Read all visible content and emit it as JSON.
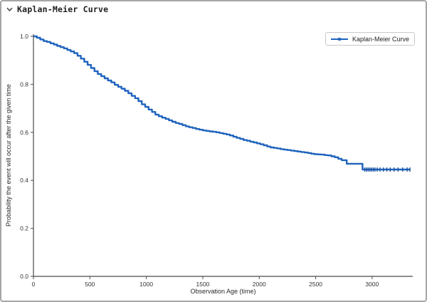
{
  "header": {
    "title": "Kaplan-Meier Curve"
  },
  "legend": {
    "label": "Kaplan-Meier Curve"
  },
  "colors": {
    "curve": "#1f63bd",
    "censor": "#1a4fa0",
    "axis": "#4a4a4a",
    "text": "#333333",
    "window_border": "#a6a6a6",
    "legend_border": "#c9c9c9"
  },
  "chart_data": {
    "type": "line",
    "subtype": "step-after survival curve",
    "title": "",
    "xlabel": "Observation Age (time)",
    "ylabel": "Probability the event will occur after the given time",
    "xlim": [
      0,
      3360
    ],
    "ylim": [
      0,
      1.0
    ],
    "xticks": [
      0,
      500,
      1000,
      1500,
      2000,
      2500,
      3000
    ],
    "yticks": [
      0.0,
      0.2,
      0.4,
      0.6,
      0.8,
      1.0
    ],
    "grid": false,
    "legend_position": "top-right",
    "series": [
      {
        "name": "Kaplan-Meier Curve",
        "color": "#1f63bd",
        "points": [
          [
            0,
            1.0
          ],
          [
            30,
            0.994
          ],
          [
            60,
            0.987
          ],
          [
            90,
            0.98
          ],
          [
            120,
            0.977
          ],
          [
            150,
            0.971
          ],
          [
            180,
            0.966
          ],
          [
            210,
            0.96
          ],
          [
            240,
            0.955
          ],
          [
            270,
            0.95
          ],
          [
            300,
            0.943
          ],
          [
            330,
            0.937
          ],
          [
            360,
            0.93
          ],
          [
            390,
            0.919
          ],
          [
            420,
            0.907
          ],
          [
            450,
            0.894
          ],
          [
            480,
            0.881
          ],
          [
            510,
            0.868
          ],
          [
            540,
            0.855
          ],
          [
            570,
            0.843
          ],
          [
            600,
            0.834
          ],
          [
            630,
            0.825
          ],
          [
            660,
            0.816
          ],
          [
            690,
            0.808
          ],
          [
            720,
            0.798
          ],
          [
            750,
            0.79
          ],
          [
            780,
            0.782
          ],
          [
            810,
            0.773
          ],
          [
            840,
            0.763
          ],
          [
            870,
            0.752
          ],
          [
            900,
            0.742
          ],
          [
            930,
            0.73
          ],
          [
            960,
            0.717
          ],
          [
            990,
            0.706
          ],
          [
            1020,
            0.695
          ],
          [
            1050,
            0.685
          ],
          [
            1080,
            0.674
          ],
          [
            1110,
            0.667
          ],
          [
            1140,
            0.661
          ],
          [
            1170,
            0.656
          ],
          [
            1200,
            0.65
          ],
          [
            1230,
            0.644
          ],
          [
            1260,
            0.639
          ],
          [
            1290,
            0.635
          ],
          [
            1320,
            0.63
          ],
          [
            1350,
            0.625
          ],
          [
            1380,
            0.621
          ],
          [
            1410,
            0.618
          ],
          [
            1440,
            0.614
          ],
          [
            1470,
            0.611
          ],
          [
            1500,
            0.608
          ],
          [
            1530,
            0.606
          ],
          [
            1560,
            0.604
          ],
          [
            1590,
            0.602
          ],
          [
            1620,
            0.6
          ],
          [
            1650,
            0.597
          ],
          [
            1680,
            0.594
          ],
          [
            1710,
            0.591
          ],
          [
            1740,
            0.587
          ],
          [
            1770,
            0.582
          ],
          [
            1800,
            0.577
          ],
          [
            1830,
            0.573
          ],
          [
            1860,
            0.568
          ],
          [
            1890,
            0.565
          ],
          [
            1920,
            0.561
          ],
          [
            1950,
            0.558
          ],
          [
            1980,
            0.554
          ],
          [
            2010,
            0.55
          ],
          [
            2040,
            0.546
          ],
          [
            2070,
            0.541
          ],
          [
            2100,
            0.537
          ],
          [
            2130,
            0.535
          ],
          [
            2160,
            0.533
          ],
          [
            2190,
            0.53
          ],
          [
            2220,
            0.528
          ],
          [
            2250,
            0.526
          ],
          [
            2280,
            0.524
          ],
          [
            2310,
            0.522
          ],
          [
            2340,
            0.52
          ],
          [
            2370,
            0.518
          ],
          [
            2400,
            0.516
          ],
          [
            2430,
            0.514
          ],
          [
            2460,
            0.511
          ],
          [
            2490,
            0.509
          ],
          [
            2520,
            0.508
          ],
          [
            2550,
            0.507
          ],
          [
            2580,
            0.505
          ],
          [
            2610,
            0.504
          ],
          [
            2640,
            0.5
          ],
          [
            2670,
            0.496
          ],
          [
            2700,
            0.49
          ],
          [
            2730,
            0.484
          ],
          [
            2775,
            0.469
          ],
          [
            2915,
            0.445
          ],
          [
            3340,
            0.445
          ]
        ]
      }
    ],
    "censor_marks": {
      "probability": 0.445,
      "times": [
        2935,
        2950,
        2965,
        2980,
        2995,
        3010,
        3025,
        3045,
        3070,
        3100,
        3130,
        3160,
        3195,
        3230,
        3270,
        3310,
        3335
      ]
    }
  }
}
